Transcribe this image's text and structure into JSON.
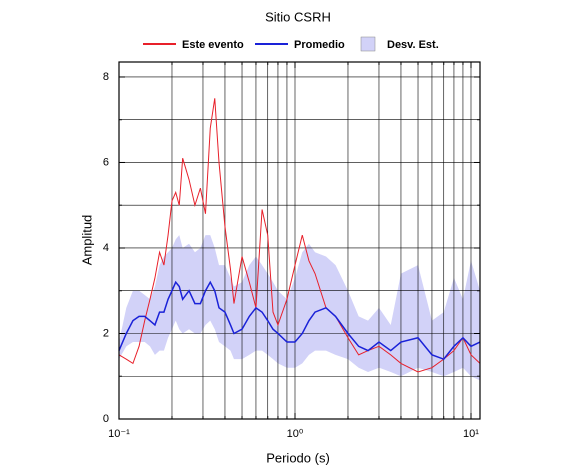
{
  "chart_data": {
    "type": "line",
    "title": "Sitio CSRH",
    "x_label": "Periodo (s)",
    "y_label": "Amplitud",
    "log_x": true,
    "grid": true,
    "xlim": [
      0.1,
      11.25
    ],
    "ylim": [
      0,
      8.35
    ],
    "xticks": [
      {
        "value": 0.1,
        "label": "10⁻¹"
      },
      {
        "value": 1,
        "label": "10⁰"
      },
      {
        "value": 10,
        "label": "10¹"
      }
    ],
    "x_minor_ticks": [
      0.2,
      0.3,
      0.4,
      0.5,
      0.6,
      0.7,
      0.8,
      0.9,
      2,
      3,
      4,
      5,
      6,
      7,
      8,
      9
    ],
    "yticks": [
      0,
      2,
      4,
      6,
      8
    ],
    "y_minor_ticks": [
      1,
      3,
      5,
      7
    ],
    "x": [
      0.1,
      0.11,
      0.12,
      0.13,
      0.14,
      0.15,
      0.16,
      0.17,
      0.18,
      0.19,
      0.2,
      0.21,
      0.22,
      0.23,
      0.25,
      0.27,
      0.29,
      0.31,
      0.33,
      0.35,
      0.37,
      0.4,
      0.43,
      0.45,
      0.5,
      0.55,
      0.6,
      0.65,
      0.7,
      0.75,
      0.8,
      0.9,
      1.0,
      1.1,
      1.2,
      1.3,
      1.5,
      1.7,
      2.0,
      2.3,
      2.6,
      3.0,
      3.5,
      4.0,
      5.0,
      6.0,
      7.0,
      8.0,
      9.0,
      10.0,
      11.25
    ],
    "series": [
      {
        "name": "Este evento",
        "color": "#e8202a",
        "width": 1,
        "values": [
          1.5,
          1.4,
          1.3,
          1.7,
          2.3,
          2.8,
          3.3,
          3.9,
          3.6,
          4.3,
          5.1,
          5.3,
          5.0,
          6.1,
          5.6,
          5.0,
          5.4,
          4.8,
          6.8,
          7.5,
          6.0,
          4.5,
          3.5,
          2.7,
          3.8,
          3.2,
          2.6,
          4.9,
          4.3,
          2.5,
          2.2,
          2.8,
          3.6,
          4.3,
          3.7,
          3.4,
          2.6,
          2.4,
          1.9,
          1.5,
          1.6,
          1.7,
          1.5,
          1.3,
          1.1,
          1.2,
          1.4,
          1.6,
          1.9,
          1.5,
          1.3
        ]
      },
      {
        "name": "Promedio",
        "color": "#1a22d8",
        "width": 1.5,
        "values": [
          1.6,
          2.0,
          2.3,
          2.4,
          2.4,
          2.3,
          2.2,
          2.5,
          2.5,
          2.8,
          3.0,
          3.2,
          3.1,
          2.8,
          3.0,
          2.7,
          2.7,
          3.0,
          3.2,
          3.0,
          2.6,
          2.5,
          2.2,
          2.0,
          2.1,
          2.4,
          2.6,
          2.5,
          2.3,
          2.1,
          2.0,
          1.8,
          1.8,
          2.0,
          2.3,
          2.5,
          2.6,
          2.4,
          2.0,
          1.7,
          1.6,
          1.8,
          1.6,
          1.8,
          1.9,
          1.5,
          1.4,
          1.7,
          1.9,
          1.7,
          1.8
        ]
      }
    ],
    "band": {
      "name": "Desv. Est.",
      "color": "#d2d2f8",
      "upper": [
        1.8,
        2.6,
        3.0,
        3.0,
        2.9,
        2.8,
        3.1,
        3.6,
        3.8,
        3.9,
        4.0,
        4.2,
        4.3,
        4.0,
        4.1,
        3.9,
        4.0,
        4.3,
        4.3,
        4.0,
        3.6,
        3.6,
        3.3,
        3.1,
        3.2,
        3.6,
        3.8,
        3.6,
        3.4,
        3.2,
        3.0,
        2.8,
        3.3,
        3.9,
        4.1,
        3.9,
        3.8,
        3.6,
        3.0,
        2.4,
        2.3,
        2.6,
        2.2,
        3.4,
        3.6,
        2.3,
        2.5,
        3.3,
        2.8,
        3.7,
        3.0
      ],
      "lower": [
        1.4,
        1.7,
        1.8,
        1.8,
        1.8,
        1.7,
        1.5,
        1.6,
        1.6,
        1.9,
        2.1,
        2.3,
        2.1,
        2.0,
        2.1,
        2.0,
        2.0,
        2.2,
        2.3,
        2.1,
        1.8,
        1.7,
        1.6,
        1.4,
        1.4,
        1.5,
        1.6,
        1.6,
        1.5,
        1.4,
        1.3,
        1.2,
        1.2,
        1.3,
        1.5,
        1.6,
        1.6,
        1.5,
        1.4,
        1.2,
        1.1,
        1.2,
        1.1,
        1.0,
        1.2,
        1.1,
        1.0,
        1.1,
        1.2,
        1.0,
        0.9
      ]
    }
  }
}
